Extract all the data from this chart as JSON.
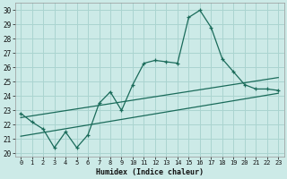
{
  "xlabel": "Humidex (Indice chaleur)",
  "bg_color": "#cceae7",
  "grid_color": "#aad4d0",
  "line_color": "#1a6b5a",
  "xlim": [
    -0.5,
    23.5
  ],
  "ylim": [
    19.8,
    30.5
  ],
  "xticks": [
    0,
    1,
    2,
    3,
    4,
    5,
    6,
    7,
    8,
    9,
    10,
    11,
    12,
    13,
    14,
    15,
    16,
    17,
    18,
    19,
    20,
    21,
    22,
    23
  ],
  "yticks": [
    20,
    21,
    22,
    23,
    24,
    25,
    26,
    27,
    28,
    29,
    30
  ],
  "main_x": [
    0,
    1,
    2,
    3,
    4,
    5,
    6,
    7,
    8,
    9,
    10,
    11,
    12,
    13,
    14,
    15,
    16,
    17,
    18,
    19,
    20,
    21,
    22,
    23
  ],
  "main_y": [
    22.8,
    22.2,
    21.7,
    20.4,
    21.5,
    20.4,
    21.3,
    23.5,
    24.3,
    23.0,
    24.8,
    26.3,
    26.5,
    26.4,
    26.3,
    29.5,
    30.0,
    28.8,
    26.6,
    25.7,
    24.8,
    24.5,
    24.5,
    24.4
  ],
  "line2_x": [
    0,
    23
  ],
  "line2_y": [
    22.5,
    25.3
  ],
  "line3_x": [
    0,
    23
  ],
  "line3_y": [
    21.2,
    24.2
  ]
}
